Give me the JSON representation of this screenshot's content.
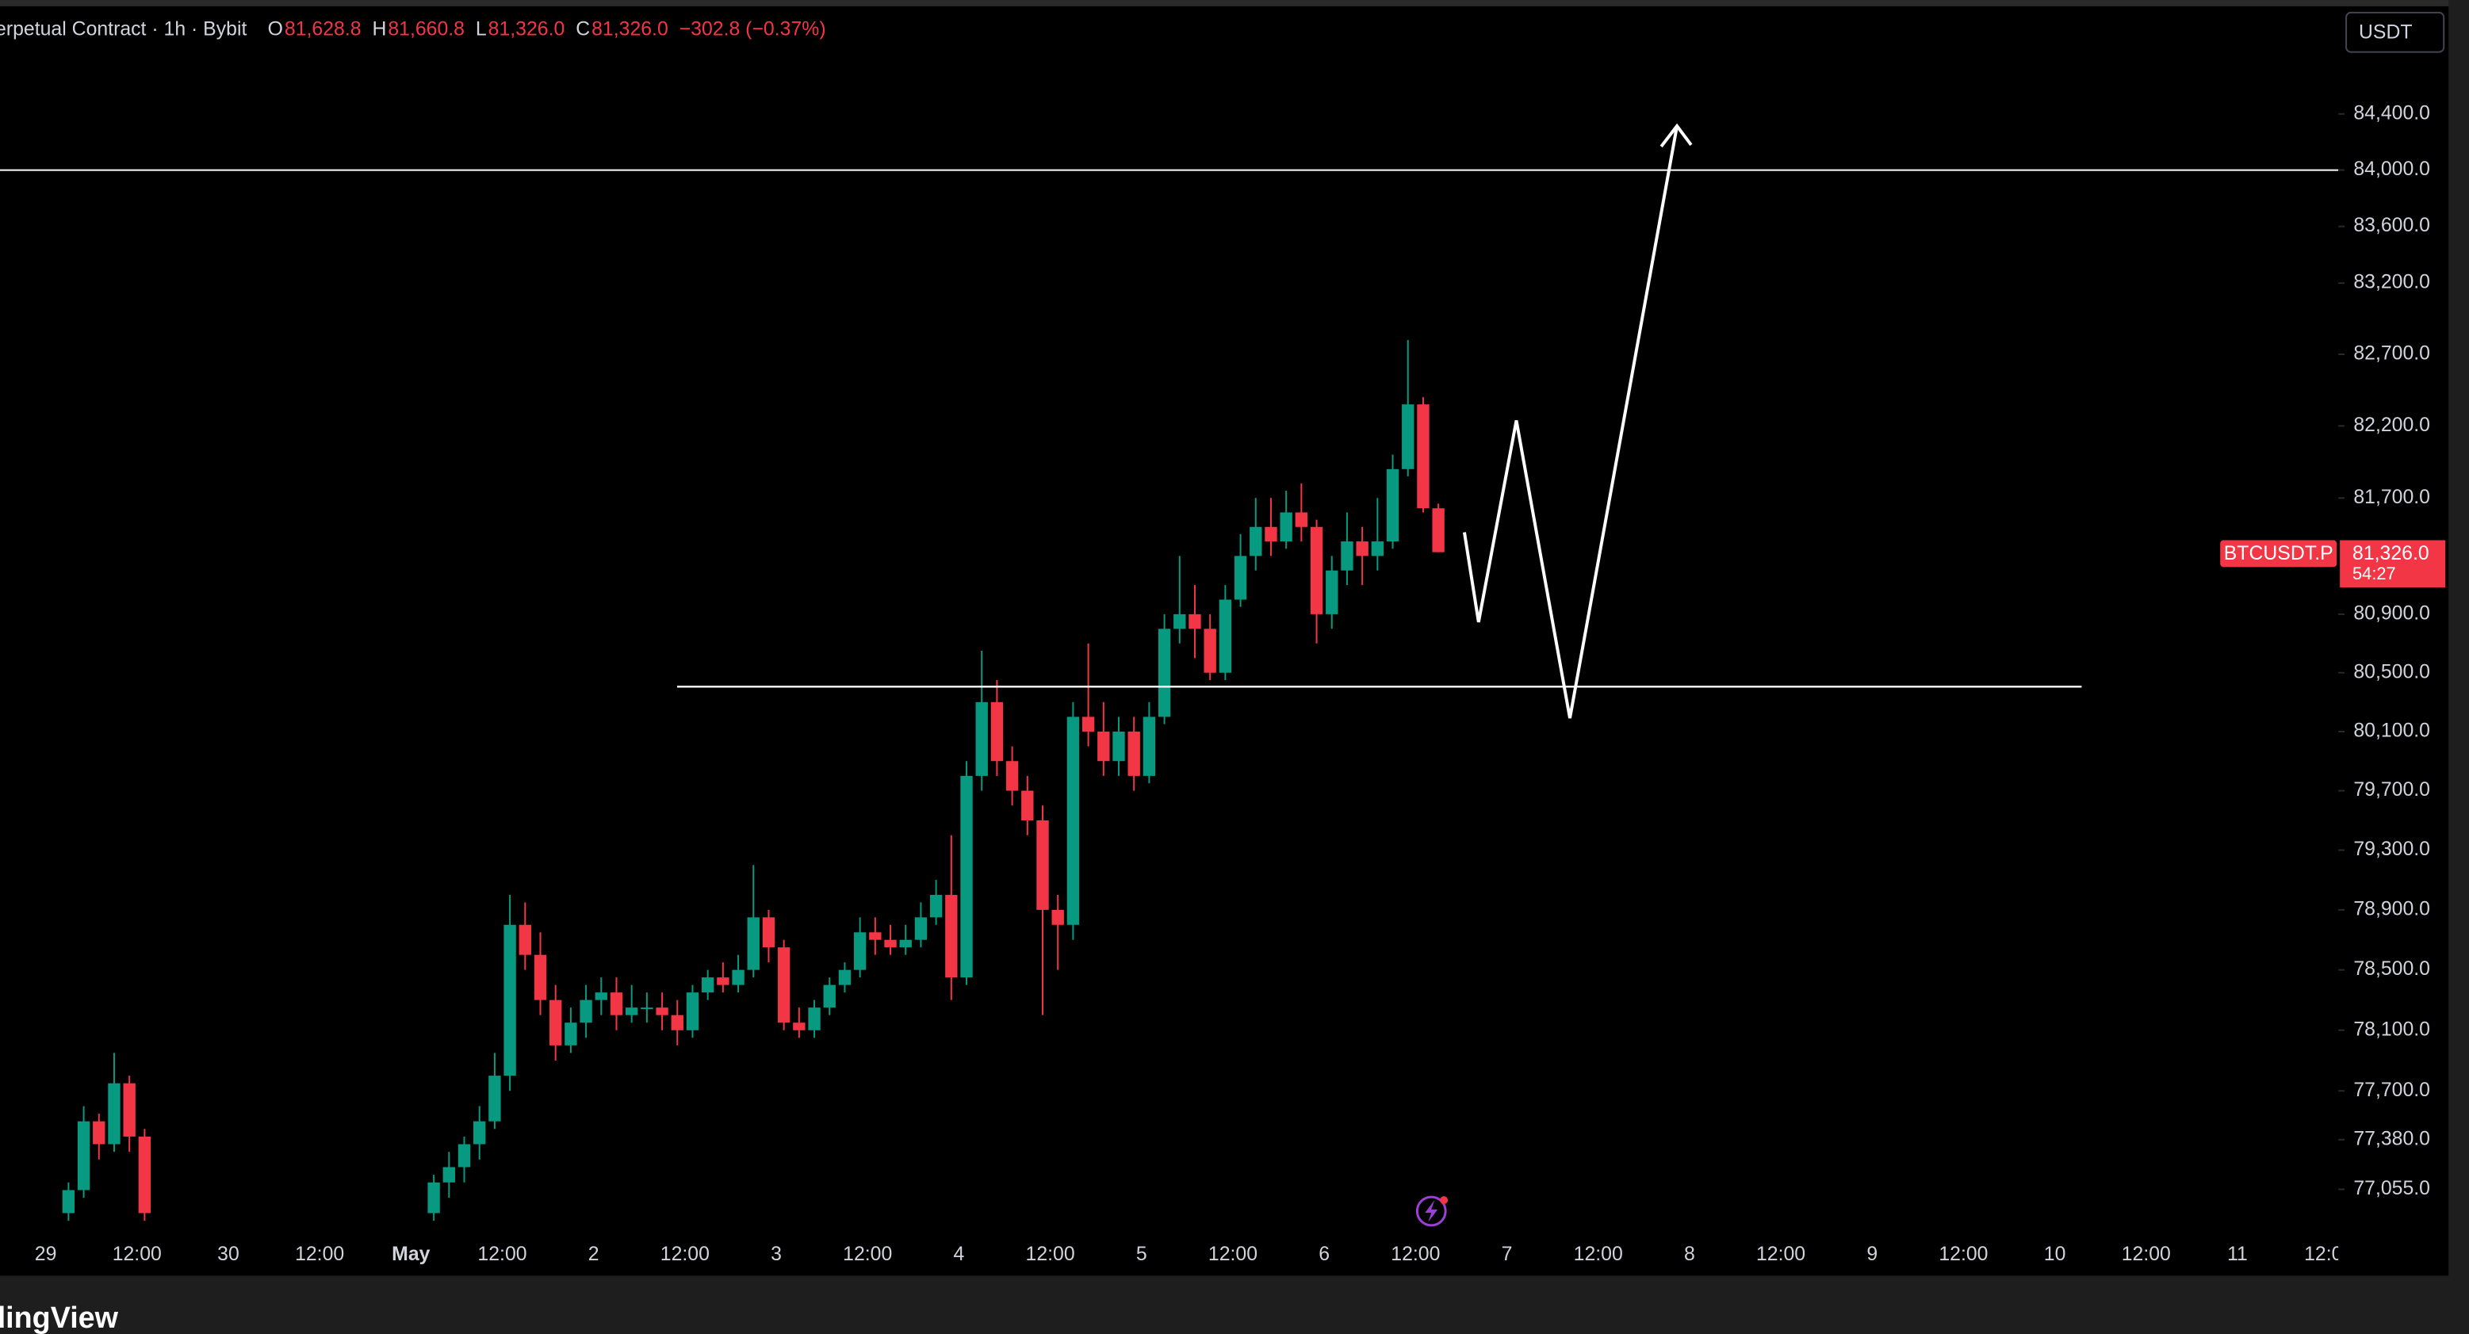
{
  "chart_data": {
    "type": "candlestick",
    "title": "erpetual Contract · 1h · Bybit",
    "ohlc_header": [
      {
        "key": "O",
        "value": "81,628.8"
      },
      {
        "key": "H",
        "value": "81,660.8"
      },
      {
        "key": "L",
        "value": "81,326.0"
      },
      {
        "key": "C",
        "value": "81,326.0"
      }
    ],
    "change": "−302.8 (−0.37%)",
    "currency": "USDT",
    "symbol_badge": "BTCUSDT.P",
    "last_price_label": "81,326.0",
    "countdown": "54:27",
    "watermark": "dingView",
    "up_color": "#089981",
    "down_color": "#f23645",
    "log_scale": true,
    "grid": false,
    "x": [
      3,
      5,
      7,
      9,
      11,
      13,
      51,
      53,
      55,
      57,
      59,
      61,
      63,
      65,
      67,
      69,
      71,
      73,
      75,
      77,
      79,
      81,
      83,
      85,
      87,
      89,
      91,
      93,
      95,
      97,
      99,
      101,
      103,
      105,
      107,
      109,
      111,
      113,
      115,
      117,
      119,
      121,
      123,
      125,
      127,
      129,
      131,
      133,
      135,
      137,
      139,
      141,
      143,
      145,
      147,
      149,
      151,
      153,
      155,
      157,
      159,
      161,
      163,
      165,
      167,
      169,
      171,
      173,
      175,
      177,
      179,
      181,
      183
    ],
    "open": [
      76900,
      77050,
      77500,
      77350,
      77750,
      77400,
      76900,
      77100,
      77200,
      77350,
      77500,
      77800,
      78800,
      78600,
      78300,
      78000,
      78150,
      78300,
      78350,
      78200,
      78250,
      78250,
      78200,
      78100,
      78350,
      78450,
      78400,
      78500,
      78850,
      78650,
      78150,
      78100,
      78250,
      78400,
      78500,
      78750,
      78700,
      78650,
      78700,
      78850,
      79000,
      78450,
      79800,
      80300,
      79900,
      79700,
      79500,
      78900,
      78800,
      80200,
      80100,
      79900,
      80100,
      79800,
      80200,
      80800,
      80900,
      80800,
      80500,
      81000,
      81300,
      81500,
      81400,
      81600,
      81500,
      80900,
      81200,
      81400,
      81300,
      81400,
      81900,
      82350,
      81628.8
    ],
    "high": [
      77100,
      77600,
      77550,
      77950,
      77800,
      77450,
      77150,
      77300,
      77400,
      77600,
      77950,
      79000,
      78950,
      78750,
      78400,
      78250,
      78400,
      78450,
      78450,
      78400,
      78350,
      78350,
      78300,
      78400,
      78500,
      78550,
      78600,
      79200,
      78900,
      78700,
      78250,
      78300,
      78450,
      78550,
      78850,
      78850,
      78800,
      78800,
      78950,
      79100,
      79400,
      79900,
      80650,
      80450,
      80000,
      79800,
      79600,
      79000,
      80300,
      80700,
      80300,
      80200,
      80200,
      80300,
      80900,
      81300,
      81100,
      80900,
      81100,
      81450,
      81700,
      81700,
      81750,
      81800,
      81550,
      81300,
      81600,
      81500,
      81700,
      82000,
      82800,
      82400,
      81660.8
    ],
    "low": [
      76850,
      77000,
      77250,
      77300,
      77300,
      76850,
      76850,
      77000,
      77100,
      77250,
      77450,
      77700,
      78500,
      78200,
      77900,
      77950,
      78050,
      78200,
      78100,
      78150,
      78150,
      78100,
      78000,
      78050,
      78300,
      78350,
      78350,
      78450,
      78550,
      78100,
      78050,
      78050,
      78200,
      78350,
      78450,
      78600,
      78600,
      78600,
      78650,
      78800,
      78300,
      78400,
      79700,
      79800,
      79600,
      79400,
      78200,
      78500,
      78700,
      80000,
      79800,
      79800,
      79700,
      79750,
      80150,
      80700,
      80600,
      80450,
      80450,
      80950,
      81200,
      81300,
      81350,
      81400,
      80700,
      80800,
      81100,
      81100,
      81200,
      81350,
      81850,
      81600,
      81326
    ],
    "close": [
      77050,
      77500,
      77350,
      77750,
      77400,
      76900,
      77100,
      77200,
      77350,
      77500,
      77800,
      78800,
      78600,
      78300,
      78000,
      78150,
      78300,
      78350,
      78200,
      78250,
      78250,
      78200,
      78100,
      78350,
      78450,
      78400,
      78500,
      78850,
      78650,
      78150,
      78100,
      78250,
      78400,
      78500,
      78750,
      78700,
      78650,
      78700,
      78850,
      79000,
      78450,
      79800,
      80300,
      79900,
      79700,
      79500,
      78900,
      78800,
      80200,
      80100,
      79900,
      80100,
      79800,
      80200,
      80800,
      80900,
      80800,
      80500,
      81000,
      81300,
      81500,
      81400,
      81600,
      81500,
      80900,
      81200,
      81400,
      81300,
      81400,
      81900,
      82350,
      81629,
      81326
    ],
    "xlim": [
      -6,
      301.25
    ],
    "xticks": [
      {
        "value": 0,
        "label": "29"
      },
      {
        "value": 12,
        "label": "12:00"
      },
      {
        "value": 24,
        "label": "30"
      },
      {
        "value": 36,
        "label": "12:00"
      },
      {
        "value": 48,
        "label": "May"
      },
      {
        "value": 60,
        "label": "12:00"
      },
      {
        "value": 72,
        "label": "2"
      },
      {
        "value": 84,
        "label": "12:00"
      },
      {
        "value": 96,
        "label": "3"
      },
      {
        "value": 108,
        "label": "12:00"
      },
      {
        "value": 120,
        "label": "4"
      },
      {
        "value": 132,
        "label": "12:00"
      },
      {
        "value": 144,
        "label": "5"
      },
      {
        "value": 156,
        "label": "12:00"
      },
      {
        "value": 168,
        "label": "6"
      },
      {
        "value": 180,
        "label": "12:00"
      },
      {
        "value": 192,
        "label": "7"
      },
      {
        "value": 204,
        "label": "12:00"
      },
      {
        "value": 216,
        "label": "8"
      },
      {
        "value": 228,
        "label": "12:00"
      },
      {
        "value": 240,
        "label": "9"
      },
      {
        "value": 252,
        "label": "12:00"
      },
      {
        "value": 264,
        "label": "10"
      },
      {
        "value": 276,
        "label": "12:00"
      },
      {
        "value": 288,
        "label": "11"
      },
      {
        "value": 300,
        "label": "12:00"
      }
    ],
    "ylim": [
      76800,
      84878
    ],
    "yticks": [
      {
        "value": 77055,
        "label": "77,055.0"
      },
      {
        "value": 77380,
        "label": "77,380.0"
      },
      {
        "value": 77700,
        "label": "77,700.0"
      },
      {
        "value": 78100,
        "label": "78,100.0"
      },
      {
        "value": 78500,
        "label": "78,500.0"
      },
      {
        "value": 78900,
        "label": "78,900.0"
      },
      {
        "value": 79300,
        "label": "79,300.0"
      },
      {
        "value": 79700,
        "label": "79,700.0"
      },
      {
        "value": 80100,
        "label": "80,100.0"
      },
      {
        "value": 80500,
        "label": "80,500.0"
      },
      {
        "value": 80900,
        "label": "80,900.0"
      },
      {
        "value": 81700,
        "label": "81,700.0"
      },
      {
        "value": 82200,
        "label": "82,200.0"
      },
      {
        "value": 82700,
        "label": "82,700.0"
      },
      {
        "value": 83200,
        "label": "83,200.0"
      },
      {
        "value": 83600,
        "label": "83,600.0"
      },
      {
        "value": 84000,
        "label": "84,000.0"
      },
      {
        "value": 84400,
        "label": "84,400.0"
      }
    ]
  }
}
